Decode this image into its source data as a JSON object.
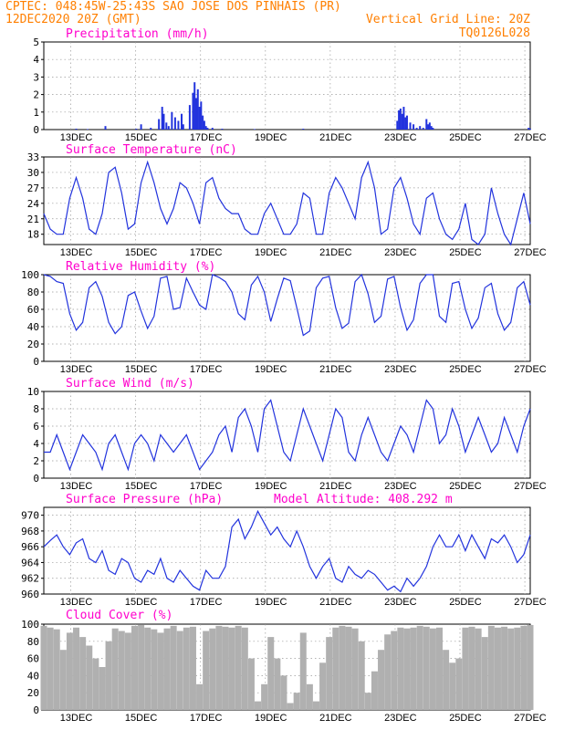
{
  "header": {
    "line1_left": "CPTEC:  048:45W-25:43S  SAO JOSE DOS PINHAIS (PR)",
    "line2_left": "12DEC2020 20Z (GMT)",
    "line2_right": "Vertical Grid Line: 20Z",
    "line3_right": "TQ0126L028"
  },
  "colors": {
    "header": "#ff7f00",
    "title": "#ff00cc",
    "series": "#2233dd",
    "cloud": "#b0b0b0",
    "grid": "#999999"
  },
  "x_ticks": [
    "13DEC",
    "15DEC",
    "17DEC",
    "19DEC",
    "21DEC",
    "23DEC",
    "25DEC",
    "27DEC"
  ],
  "chart_data": [
    {
      "type": "bar",
      "title": "Precipitation (mm/h)",
      "ylim": [
        0,
        5
      ],
      "yticks": [
        "0",
        "1",
        "2",
        "3",
        "4",
        "5"
      ],
      "x": [
        13.0,
        13.35,
        13.9,
        14.85,
        15.0,
        15.3,
        15.55,
        15.65,
        15.7,
        15.78,
        15.85,
        15.95,
        16.05,
        16.15,
        16.25,
        16.3,
        16.5,
        16.6,
        16.65,
        16.7,
        16.75,
        16.8,
        16.85,
        16.9,
        16.95,
        17.0,
        17.05,
        17.2,
        17.5,
        18.5,
        20.0,
        22.9,
        22.95,
        23.0,
        23.05,
        23.1,
        23.15,
        23.2,
        23.3,
        23.4,
        23.5,
        23.6,
        23.7,
        23.8,
        23.85,
        23.9,
        23.95,
        24.0,
        26.95,
        27.0
      ],
      "values": [
        0.05,
        0.03,
        0.2,
        0.05,
        0.3,
        0.1,
        0.6,
        1.3,
        0.9,
        0.4,
        0.2,
        1.0,
        0.7,
        0.5,
        0.9,
        0.3,
        1.4,
        2.1,
        2.7,
        1.8,
        2.3,
        1.3,
        1.6,
        0.8,
        0.5,
        0.2,
        0.1,
        0.1,
        0.05,
        0.03,
        0.05,
        0.5,
        1.1,
        1.2,
        0.9,
        1.3,
        0.7,
        0.8,
        0.4,
        0.3,
        0.1,
        0.2,
        0.1,
        0.6,
        0.3,
        0.4,
        0.2,
        0.1,
        0.1,
        0.05
      ]
    },
    {
      "type": "line",
      "title": "Surface Temperature (nC)",
      "ylim": [
        16,
        33
      ],
      "yticks": [
        "18",
        "21",
        "24",
        "27",
        "30",
        "33"
      ],
      "x": [
        12.0,
        12.2,
        12.4,
        12.6,
        12.8,
        13.0,
        13.2,
        13.4,
        13.6,
        13.8,
        14.0,
        14.2,
        14.4,
        14.6,
        14.8,
        15.0,
        15.2,
        15.4,
        15.6,
        15.8,
        16.0,
        16.2,
        16.4,
        16.6,
        16.8,
        17.0,
        17.2,
        17.4,
        17.6,
        17.8,
        18.0,
        18.2,
        18.4,
        18.6,
        18.8,
        19.0,
        19.2,
        19.4,
        19.6,
        19.8,
        20.0,
        20.2,
        20.4,
        20.6,
        20.8,
        21.0,
        21.2,
        21.4,
        21.6,
        21.8,
        22.0,
        22.2,
        22.4,
        22.6,
        22.8,
        23.0,
        23.2,
        23.4,
        23.6,
        23.8,
        24.0,
        24.2,
        24.4,
        24.6,
        24.8,
        25.0,
        25.2,
        25.4,
        25.6,
        25.8,
        26.0,
        26.2,
        26.4,
        26.6,
        26.8,
        27.0
      ],
      "values": [
        22,
        19,
        18,
        18,
        25,
        29,
        25,
        19,
        18,
        22,
        30,
        31,
        26,
        19,
        20,
        28,
        32,
        28,
        23,
        20,
        23,
        28,
        27,
        24,
        20,
        28,
        29,
        25,
        23,
        22,
        22,
        19,
        18,
        18,
        22,
        24,
        21,
        18,
        18,
        20,
        26,
        25,
        18,
        18,
        26,
        29,
        27,
        24,
        21,
        29,
        32,
        27,
        18,
        19,
        27,
        29,
        25,
        20,
        18,
        25,
        26,
        21,
        18,
        17,
        19,
        24,
        17,
        16,
        18,
        27,
        22,
        18,
        16,
        21,
        26,
        20
      ]
    },
    {
      "type": "line",
      "title": "Relative Humidity (%)",
      "ylim": [
        0,
        100
      ],
      "yticks": [
        "0",
        "20",
        "40",
        "60",
        "80",
        "100"
      ],
      "x": [
        12.0,
        12.2,
        12.4,
        12.6,
        12.8,
        13.0,
        13.2,
        13.4,
        13.6,
        13.8,
        14.0,
        14.2,
        14.4,
        14.6,
        14.8,
        15.0,
        15.2,
        15.4,
        15.6,
        15.8,
        16.0,
        16.2,
        16.4,
        16.6,
        16.8,
        17.0,
        17.2,
        17.4,
        17.6,
        17.8,
        18.0,
        18.2,
        18.4,
        18.6,
        18.8,
        19.0,
        19.2,
        19.4,
        19.6,
        19.8,
        20.0,
        20.2,
        20.4,
        20.6,
        20.8,
        21.0,
        21.2,
        21.4,
        21.6,
        21.8,
        22.0,
        22.2,
        22.4,
        22.6,
        22.8,
        23.0,
        23.2,
        23.4,
        23.6,
        23.8,
        24.0,
        24.2,
        24.4,
        24.6,
        24.8,
        25.0,
        25.2,
        25.4,
        25.6,
        25.8,
        26.0,
        26.2,
        26.4,
        26.6,
        26.8,
        27.0
      ],
      "values": [
        100,
        98,
        92,
        90,
        55,
        36,
        45,
        85,
        92,
        75,
        45,
        32,
        40,
        76,
        80,
        58,
        38,
        52,
        96,
        98,
        60,
        62,
        96,
        80,
        65,
        60,
        100,
        97,
        92,
        80,
        55,
        48,
        88,
        98,
        80,
        46,
        72,
        96,
        93,
        62,
        30,
        35,
        85,
        96,
        98,
        62,
        38,
        44,
        92,
        100,
        78,
        45,
        52,
        95,
        98,
        62,
        36,
        48,
        90,
        100,
        100,
        52,
        45,
        90,
        92,
        60,
        38,
        50,
        85,
        90,
        55,
        36,
        45,
        85,
        92,
        65
      ]
    },
    {
      "type": "line",
      "title": "Surface Wind (m/s)",
      "ylim": [
        0,
        10
      ],
      "yticks": [
        "0",
        "2",
        "4",
        "6",
        "8",
        "10"
      ],
      "x": [
        12.0,
        12.2,
        12.4,
        12.6,
        12.8,
        13.0,
        13.2,
        13.4,
        13.6,
        13.8,
        14.0,
        14.2,
        14.4,
        14.6,
        14.8,
        15.0,
        15.2,
        15.4,
        15.6,
        15.8,
        16.0,
        16.2,
        16.4,
        16.6,
        16.8,
        17.0,
        17.2,
        17.4,
        17.6,
        17.8,
        18.0,
        18.2,
        18.4,
        18.6,
        18.8,
        19.0,
        19.2,
        19.4,
        19.6,
        19.8,
        20.0,
        20.2,
        20.4,
        20.6,
        20.8,
        21.0,
        21.2,
        21.4,
        21.6,
        21.8,
        22.0,
        22.2,
        22.4,
        22.6,
        22.8,
        23.0,
        23.2,
        23.4,
        23.6,
        23.8,
        24.0,
        24.2,
        24.4,
        24.6,
        24.8,
        25.0,
        25.2,
        25.4,
        25.6,
        25.8,
        26.0,
        26.2,
        26.4,
        26.6,
        26.8,
        27.0
      ],
      "values": [
        3,
        3,
        5,
        3,
        1,
        3,
        5,
        4,
        3,
        1,
        4,
        5,
        3,
        1,
        4,
        5,
        4,
        2,
        5,
        4,
        3,
        4,
        5,
        3,
        1,
        2,
        3,
        5,
        6,
        3,
        7,
        8,
        6,
        3,
        8,
        9,
        6,
        3,
        2,
        5,
        8,
        6,
        4,
        2,
        5,
        8,
        7,
        3,
        2,
        5,
        7,
        5,
        3,
        2,
        4,
        6,
        5,
        3,
        6,
        9,
        8,
        4,
        5,
        8,
        6,
        3,
        5,
        7,
        5,
        3,
        4,
        7,
        5,
        3,
        6,
        8
      ]
    },
    {
      "type": "line",
      "title": "Surface Pressure (hPa)",
      "annotation": "Model Altitude: 408.292 m",
      "ylim": [
        960,
        971
      ],
      "yticks": [
        "960",
        "962",
        "964",
        "966",
        "968",
        "970"
      ],
      "x": [
        12.0,
        12.2,
        12.4,
        12.6,
        12.8,
        13.0,
        13.2,
        13.4,
        13.6,
        13.8,
        14.0,
        14.2,
        14.4,
        14.6,
        14.8,
        15.0,
        15.2,
        15.4,
        15.6,
        15.8,
        16.0,
        16.2,
        16.4,
        16.6,
        16.8,
        17.0,
        17.2,
        17.4,
        17.6,
        17.8,
        18.0,
        18.2,
        18.4,
        18.6,
        18.8,
        19.0,
        19.2,
        19.4,
        19.6,
        19.8,
        20.0,
        20.2,
        20.4,
        20.6,
        20.8,
        21.0,
        21.2,
        21.4,
        21.6,
        21.8,
        22.0,
        22.2,
        22.4,
        22.6,
        22.8,
        23.0,
        23.2,
        23.4,
        23.6,
        23.8,
        24.0,
        24.2,
        24.4,
        24.6,
        24.8,
        25.0,
        25.2,
        25.4,
        25.6,
        25.8,
        26.0,
        26.2,
        26.4,
        26.6,
        26.8,
        27.0
      ],
      "values": [
        966,
        966.8,
        967.5,
        966,
        965,
        966.5,
        967,
        964.5,
        964,
        965.5,
        963,
        962.5,
        964.5,
        964,
        962,
        961.5,
        963,
        962.5,
        964.5,
        962,
        961.5,
        963,
        962,
        961,
        960.5,
        963,
        962,
        962,
        963.5,
        968.5,
        969.5,
        967,
        968.5,
        970.5,
        969,
        967.5,
        968.5,
        967,
        966,
        968,
        966,
        963.5,
        962,
        963.5,
        964.5,
        962,
        961.5,
        963.5,
        962.5,
        962,
        963,
        962.5,
        961.5,
        960.5,
        961,
        960.3,
        962,
        961,
        962,
        963.5,
        966,
        967.5,
        966,
        966,
        967.5,
        965.5,
        967.5,
        966,
        964.5,
        967,
        966.5,
        967.5,
        966,
        964,
        965,
        967.5
      ]
    },
    {
      "type": "area",
      "title": "Cloud Cover (%)",
      "ylim": [
        0,
        100
      ],
      "yticks": [
        "0",
        "20",
        "40",
        "60",
        "80",
        "100"
      ],
      "x": [
        12.0,
        12.2,
        12.4,
        12.6,
        12.8,
        13.0,
        13.2,
        13.4,
        13.6,
        13.8,
        14.0,
        14.2,
        14.4,
        14.6,
        14.8,
        15.0,
        15.2,
        15.4,
        15.6,
        15.8,
        16.0,
        16.2,
        16.4,
        16.6,
        16.8,
        17.0,
        17.2,
        17.4,
        17.6,
        17.8,
        18.0,
        18.2,
        18.4,
        18.6,
        18.8,
        19.0,
        19.2,
        19.4,
        19.6,
        19.8,
        20.0,
        20.2,
        20.4,
        20.6,
        20.8,
        21.0,
        21.2,
        21.4,
        21.6,
        21.8,
        22.0,
        22.2,
        22.4,
        22.6,
        22.8,
        23.0,
        23.2,
        23.4,
        23.6,
        23.8,
        24.0,
        24.2,
        24.4,
        24.6,
        24.8,
        25.0,
        25.2,
        25.4,
        25.6,
        25.8,
        26.0,
        26.2,
        26.4,
        26.6,
        26.8,
        27.0
      ],
      "values": [
        98,
        96,
        94,
        70,
        90,
        96,
        85,
        75,
        60,
        50,
        80,
        95,
        92,
        90,
        98,
        99,
        96,
        94,
        90,
        95,
        98,
        92,
        96,
        97,
        30,
        92,
        95,
        98,
        97,
        96,
        98,
        96,
        60,
        10,
        30,
        85,
        60,
        40,
        8,
        20,
        90,
        30,
        10,
        55,
        85,
        96,
        98,
        97,
        95,
        80,
        20,
        45,
        70,
        88,
        92,
        96,
        95,
        96,
        98,
        97,
        95,
        96,
        70,
        55,
        60,
        96,
        97,
        95,
        85,
        98,
        96,
        97,
        95,
        96,
        98,
        99
      ]
    }
  ]
}
